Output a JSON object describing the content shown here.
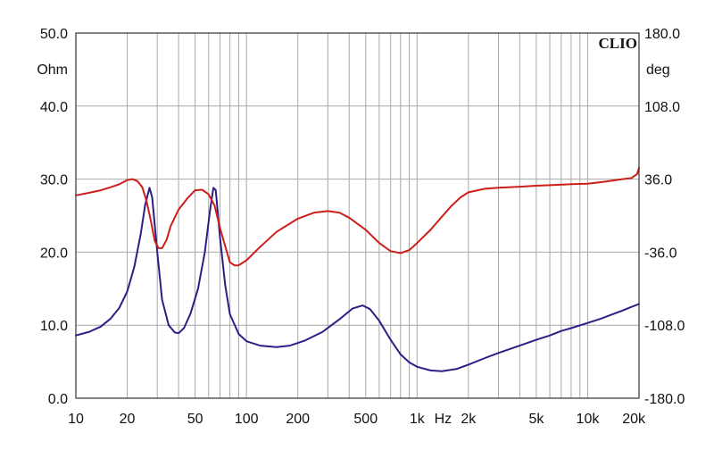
{
  "chart_data": {
    "type": "line",
    "brand_label": "CLIO",
    "x_unit_label": "Hz",
    "x_scale": "log",
    "xlim": [
      10,
      20000
    ],
    "x_tick_labels": [
      {
        "value": 10,
        "label": "10"
      },
      {
        "value": 20,
        "label": "20"
      },
      {
        "value": 50,
        "label": "50"
      },
      {
        "value": 100,
        "label": "100"
      },
      {
        "value": 200,
        "label": "200"
      },
      {
        "value": 500,
        "label": "500"
      },
      {
        "value": 1000,
        "label": "1k"
      },
      {
        "value": 2000,
        "label": "2k"
      },
      {
        "value": 5000,
        "label": "5k"
      },
      {
        "value": 10000,
        "label": "10k"
      },
      {
        "value": 20000,
        "label": "20k"
      }
    ],
    "y_left": {
      "unit": "Ohm",
      "lim": [
        0,
        50
      ],
      "ticks": [
        {
          "value": 0,
          "label": "0.0"
        },
        {
          "value": 10,
          "label": "10.0"
        },
        {
          "value": 20,
          "label": "20.0"
        },
        {
          "value": 30,
          "label": "30.0"
        },
        {
          "value": 40,
          "label": "40.0"
        },
        {
          "value": 50,
          "label": "50.0"
        }
      ]
    },
    "y_right": {
      "unit": "deg",
      "lim": [
        -180,
        180
      ],
      "ticks": [
        {
          "value": -180,
          "label": "-180.0"
        },
        {
          "value": -108,
          "label": "-108.0"
        },
        {
          "value": -36,
          "label": "-36.0"
        },
        {
          "value": 36,
          "label": "36.0"
        },
        {
          "value": 108,
          "label": "108.0"
        },
        {
          "value": 180,
          "label": "180.0"
        }
      ]
    },
    "grid": true,
    "series": [
      {
        "axis": "left",
        "color": "#2b1f86",
        "points": [
          [
            10,
            8.6
          ],
          [
            12,
            9.1
          ],
          [
            14,
            9.8
          ],
          [
            16,
            10.9
          ],
          [
            18,
            12.4
          ],
          [
            20,
            14.6
          ],
          [
            22,
            18.0
          ],
          [
            24,
            22.5
          ],
          [
            25.5,
            26.5
          ],
          [
            27,
            28.8
          ],
          [
            28,
            27.5
          ],
          [
            30,
            20.0
          ],
          [
            32,
            13.5
          ],
          [
            35,
            10.0
          ],
          [
            38,
            9.0
          ],
          [
            40,
            8.9
          ],
          [
            43,
            9.6
          ],
          [
            47,
            11.6
          ],
          [
            52,
            15.0
          ],
          [
            57,
            20.0
          ],
          [
            61,
            25.5
          ],
          [
            64,
            28.8
          ],
          [
            66,
            28.5
          ],
          [
            70,
            22.0
          ],
          [
            75,
            15.5
          ],
          [
            80,
            11.5
          ],
          [
            90,
            8.8
          ],
          [
            100,
            7.8
          ],
          [
            120,
            7.2
          ],
          [
            150,
            7.0
          ],
          [
            180,
            7.2
          ],
          [
            220,
            7.9
          ],
          [
            280,
            9.1
          ],
          [
            350,
            10.8
          ],
          [
            420,
            12.3
          ],
          [
            480,
            12.7
          ],
          [
            530,
            12.2
          ],
          [
            600,
            10.6
          ],
          [
            700,
            8.0
          ],
          [
            800,
            6.0
          ],
          [
            900,
            4.9
          ],
          [
            1000,
            4.3
          ],
          [
            1200,
            3.8
          ],
          [
            1400,
            3.7
          ],
          [
            1700,
            4.0
          ],
          [
            2000,
            4.6
          ],
          [
            2500,
            5.5
          ],
          [
            3000,
            6.2
          ],
          [
            4000,
            7.2
          ],
          [
            5000,
            8.0
          ],
          [
            6000,
            8.6
          ],
          [
            7000,
            9.2
          ],
          [
            8000,
            9.6
          ],
          [
            10000,
            10.3
          ],
          [
            12000,
            10.9
          ],
          [
            14000,
            11.5
          ],
          [
            16000,
            12.0
          ],
          [
            18000,
            12.5
          ],
          [
            20000,
            12.9
          ]
        ]
      },
      {
        "axis": "right",
        "color": "#cc1f1a",
        "points": [
          [
            10,
            20
          ],
          [
            12,
            22.5
          ],
          [
            14,
            25
          ],
          [
            16,
            28
          ],
          [
            18,
            31
          ],
          [
            20,
            35
          ],
          [
            21.5,
            36
          ],
          [
            23,
            34
          ],
          [
            24.5,
            28
          ],
          [
            26,
            14
          ],
          [
            27.5,
            -5
          ],
          [
            29,
            -25
          ],
          [
            30.5,
            -32
          ],
          [
            32,
            -32
          ],
          [
            34,
            -24
          ],
          [
            36,
            -10
          ],
          [
            40,
            6
          ],
          [
            45,
            17
          ],
          [
            50,
            25
          ],
          [
            55,
            25.5
          ],
          [
            60,
            21
          ],
          [
            65,
            10
          ],
          [
            70,
            -12
          ],
          [
            75,
            -30
          ],
          [
            80,
            -46
          ],
          [
            85,
            -49
          ],
          [
            90,
            -49
          ],
          [
            100,
            -44
          ],
          [
            120,
            -31
          ],
          [
            150,
            -16
          ],
          [
            200,
            -3
          ],
          [
            250,
            3
          ],
          [
            300,
            4.5
          ],
          [
            350,
            3
          ],
          [
            400,
            -2
          ],
          [
            500,
            -14
          ],
          [
            600,
            -27
          ],
          [
            700,
            -35
          ],
          [
            800,
            -37
          ],
          [
            900,
            -34
          ],
          [
            1000,
            -27
          ],
          [
            1200,
            -14
          ],
          [
            1400,
            -1
          ],
          [
            1600,
            10
          ],
          [
            1800,
            18
          ],
          [
            2000,
            23
          ],
          [
            2500,
            26.5
          ],
          [
            3000,
            27.5
          ],
          [
            4000,
            28.5
          ],
          [
            5000,
            29.5
          ],
          [
            6000,
            30
          ],
          [
            8000,
            31
          ],
          [
            10000,
            31.5
          ],
          [
            12000,
            33
          ],
          [
            14000,
            34.5
          ],
          [
            16000,
            36
          ],
          [
            18000,
            37
          ],
          [
            19500,
            41
          ],
          [
            20000,
            47
          ]
        ]
      }
    ]
  }
}
